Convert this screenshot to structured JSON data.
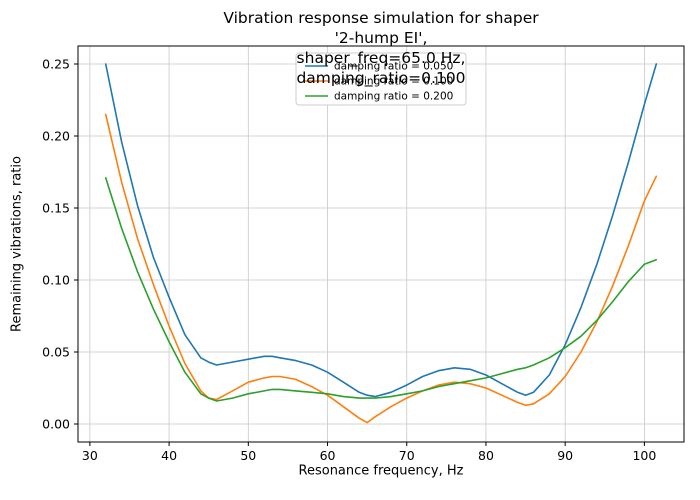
{
  "chart_data": {
    "type": "line",
    "title": "Vibration response simulation for shaper '2-hump EI',\nshaper_freq=65.0 Hz, damping_ratio=0.100",
    "xlabel": "Resonance frequency, Hz",
    "ylabel": "Remaining vibrations, ratio",
    "xlim": [
      28.5,
      105
    ],
    "ylim": [
      -0.0125,
      0.2625
    ],
    "xticks": [
      30,
      40,
      50,
      60,
      70,
      80,
      90,
      100
    ],
    "yticks": [
      0,
      0.05,
      0.1,
      0.15,
      0.2,
      0.25
    ],
    "ytick_labels": [
      "0.00",
      "0.05",
      "0.10",
      "0.15",
      "0.20",
      "0.25"
    ],
    "grid": true,
    "grid_color": "#c8c8c8",
    "axis_color": "#000000",
    "legend_position": "upper center",
    "x": [
      32,
      34,
      36,
      38,
      40,
      42,
      44,
      45,
      46,
      48,
      50,
      52,
      53,
      54,
      56,
      58,
      60,
      62,
      64,
      65,
      66,
      68,
      70,
      72,
      74,
      75,
      76,
      78,
      80,
      82,
      84,
      85,
      86,
      88,
      90,
      92,
      94,
      96,
      98,
      100,
      101.5
    ],
    "series": [
      {
        "name": "damping-0.050",
        "label": "damping ratio = 0.050",
        "color": "#1f77b4",
        "values": [
          0.25,
          0.196,
          0.152,
          0.116,
          0.088,
          0.062,
          0.046,
          0.043,
          0.041,
          0.043,
          0.045,
          0.047,
          0.047,
          0.046,
          0.044,
          0.041,
          0.036,
          0.029,
          0.022,
          0.02,
          0.019,
          0.022,
          0.027,
          0.033,
          0.037,
          0.038,
          0.039,
          0.038,
          0.034,
          0.028,
          0.022,
          0.02,
          0.022,
          0.034,
          0.055,
          0.081,
          0.111,
          0.145,
          0.182,
          0.222,
          0.25
        ]
      },
      {
        "name": "damping-0.100",
        "label": "damping ratio = 0.100",
        "color": "#ff7f0e",
        "values": [
          0.215,
          0.168,
          0.129,
          0.097,
          0.068,
          0.042,
          0.023,
          0.018,
          0.017,
          0.023,
          0.029,
          0.032,
          0.033,
          0.033,
          0.031,
          0.026,
          0.02,
          0.012,
          0.004,
          0.001,
          0.005,
          0.012,
          0.018,
          0.023,
          0.027,
          0.028,
          0.029,
          0.028,
          0.025,
          0.02,
          0.015,
          0.013,
          0.014,
          0.021,
          0.033,
          0.05,
          0.071,
          0.096,
          0.124,
          0.155,
          0.172
        ]
      },
      {
        "name": "damping-0.200",
        "label": "damping ratio = 0.200",
        "color": "#2ca02c",
        "values": [
          0.171,
          0.136,
          0.106,
          0.08,
          0.057,
          0.036,
          0.021,
          0.018,
          0.016,
          0.018,
          0.021,
          0.023,
          0.024,
          0.024,
          0.023,
          0.022,
          0.021,
          0.019,
          0.018,
          0.018,
          0.018,
          0.019,
          0.021,
          0.023,
          0.026,
          0.027,
          0.028,
          0.03,
          0.032,
          0.035,
          0.038,
          0.039,
          0.041,
          0.046,
          0.053,
          0.061,
          0.072,
          0.085,
          0.099,
          0.111,
          0.114
        ]
      }
    ]
  }
}
